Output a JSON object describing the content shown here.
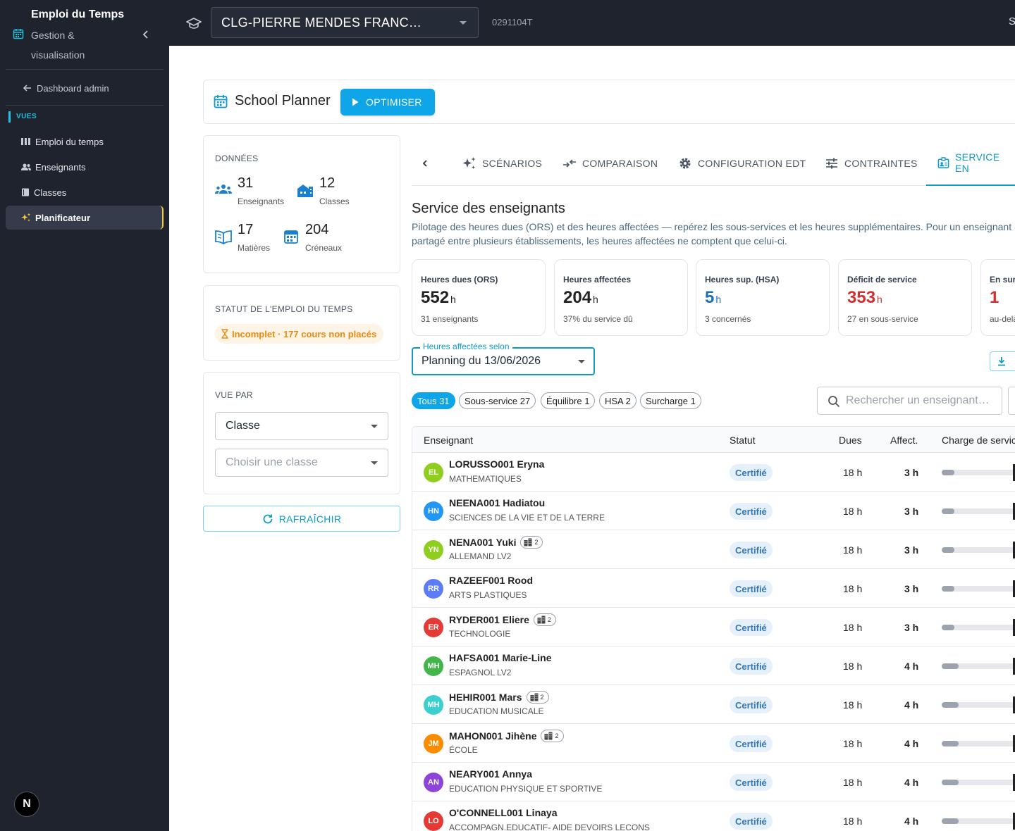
{
  "sidebar": {
    "title": "Emploi du Temps",
    "subtitle": "Gestion & visualisation",
    "back_label": "Dashboard admin",
    "section_label": "VUES",
    "items": [
      {
        "label": "Emploi du temps",
        "icon": "columns-icon",
        "active": false
      },
      {
        "label": "Enseignants",
        "icon": "users-icon",
        "active": false
      },
      {
        "label": "Classes",
        "icon": "book-icon",
        "active": false
      },
      {
        "label": "Planificateur",
        "icon": "sparkles-icon",
        "active": true
      }
    ],
    "badge": "N"
  },
  "topbar": {
    "school": "CLG-PIERRE MENDES FRANC…",
    "code": "0291104T",
    "user_initial": "S"
  },
  "planner": {
    "title": "School Planner",
    "optimize_label": "OPTIMISER"
  },
  "donnees": {
    "label": "DONNÉES",
    "stats": [
      {
        "value": "31",
        "label": "Enseignants",
        "icon": "users-icon"
      },
      {
        "value": "12",
        "label": "Classes",
        "icon": "school-icon"
      },
      {
        "value": "17",
        "label": "Matières",
        "icon": "book-open-icon"
      },
      {
        "value": "204",
        "label": "Créneaux",
        "icon": "calendar-icon"
      }
    ]
  },
  "statut": {
    "label": "STATUT DE L'EMPLOI DU TEMPS",
    "badge": "Incomplet · 177 cours non placés"
  },
  "vue_par": {
    "label": "VUE PAR",
    "select_value": "Classe",
    "class_placeholder": "Choisir une classe"
  },
  "refresh_label": "RAFRAÎCHIR",
  "tabs": [
    {
      "label": "SCÉNARIOS",
      "icon": "sparkles-icon"
    },
    {
      "label": "COMPARAISON",
      "icon": "compare-icon"
    },
    {
      "label": "CONFIGURATION EDT",
      "icon": "gear-icon"
    },
    {
      "label": "CONTRAINTES",
      "icon": "sliders-icon"
    },
    {
      "label": "SERVICE EN",
      "icon": "badge-icon"
    }
  ],
  "service": {
    "title": "Service des enseignants",
    "description": "Pilotage des heures dues (ORS) et des heures affectées — repérez les sous-services et les heures supplémentaires. Pour un enseignant partagé entre plusieurs établissements, les heures affectées ne comptent que celui-ci.",
    "kpis": [
      {
        "label": "Heures dues (ORS)",
        "value": "552",
        "unit": "h",
        "sub": "31 enseignants",
        "color": "#222222"
      },
      {
        "label": "Heures affectées",
        "value": "204",
        "unit": "h",
        "sub": "37% du service dû",
        "color": "#222222"
      },
      {
        "label": "Heures sup. (HSA)",
        "value": "5",
        "unit": "h",
        "sub": "3 concernés",
        "color": "#1d6fb8"
      },
      {
        "label": "Déficit de service",
        "value": "353",
        "unit": "h",
        "sub": "27 en sous-service",
        "color": "#d32f2f"
      },
      {
        "label": "En sur",
        "value": "1",
        "unit": "",
        "sub": "au-delà",
        "color": "#d32f2f"
      }
    ],
    "planning_label": "Heures affectées selon",
    "planning_value": "Planning du 13/06/2026",
    "filters": [
      "Tous 31",
      "Sous-service 27",
      "Équilibre 1",
      "HSA 2",
      "Surcharge 1"
    ],
    "search_placeholder": "Rechercher un enseignant…"
  },
  "table": {
    "headers": {
      "teacher": "Enseignant",
      "status": "Statut",
      "dues": "Dues",
      "aff": "Affect.",
      "charge": "Charge de servic"
    },
    "rows": [
      {
        "initials": "EL",
        "color": "#8fce1f",
        "name": "LORUSSO001 Eryna",
        "subject": "MATHEMATIQUES",
        "multi": "",
        "status": "Certifié",
        "dues": "18 h",
        "aff": "3 h",
        "charge": 0.167
      },
      {
        "initials": "HN",
        "color": "#2196f3",
        "name": "NEENA001 Hadiatou",
        "subject": "SCIENCES DE LA VIE ET DE LA TERRE",
        "multi": "",
        "status": "Certifié",
        "dues": "18 h",
        "aff": "3 h",
        "charge": 0.167
      },
      {
        "initials": "YN",
        "color": "#8fce1f",
        "name": "NENA001 Yuki",
        "subject": "ALLEMAND LV2",
        "multi": "2",
        "status": "Certifié",
        "dues": "18 h",
        "aff": "3 h",
        "charge": 0.167
      },
      {
        "initials": "RR",
        "color": "#5c7cfa",
        "name": "RAZEEF001 Rood",
        "subject": "ARTS PLASTIQUES",
        "multi": "",
        "status": "Certifié",
        "dues": "18 h",
        "aff": "3 h",
        "charge": 0.167
      },
      {
        "initials": "ER",
        "color": "#e53935",
        "name": "RYDER001 Eliere",
        "subject": "TECHNOLOGIE",
        "multi": "2",
        "status": "Certifié",
        "dues": "18 h",
        "aff": "3 h",
        "charge": 0.167
      },
      {
        "initials": "MH",
        "color": "#43b649",
        "name": "HAFSA001 Marie-Line",
        "subject": "ESPAGNOL LV2",
        "multi": "",
        "status": "Certifié",
        "dues": "18 h",
        "aff": "4 h",
        "charge": 0.222
      },
      {
        "initials": "MH",
        "color": "#3ccfcf",
        "name": "HEHIR001 Mars",
        "subject": "EDUCATION MUSICALE",
        "multi": "2",
        "status": "Certifié",
        "dues": "18 h",
        "aff": "4 h",
        "charge": 0.222
      },
      {
        "initials": "JM",
        "color": "#fb8c00",
        "name": "MAHON001 Jihène",
        "subject": "ÉCOLE",
        "multi": "2",
        "status": "Certifié",
        "dues": "18 h",
        "aff": "4 h",
        "charge": 0.222
      },
      {
        "initials": "AN",
        "color": "#8e44d9",
        "name": "NEARY001 Annya",
        "subject": "EDUCATION PHYSIQUE ET SPORTIVE",
        "multi": "",
        "status": "Certifié",
        "dues": "18 h",
        "aff": "4 h",
        "charge": 0.222
      },
      {
        "initials": "LO",
        "color": "#e53935",
        "name": "O'CONNELL001 Linaya",
        "subject": "ACCOMPAGN.EDUCATIF- AIDE DEVOIRS LECONS",
        "multi": "",
        "status": "Certifié",
        "dues": "18 h",
        "aff": "4 h",
        "charge": 0.222
      }
    ]
  }
}
